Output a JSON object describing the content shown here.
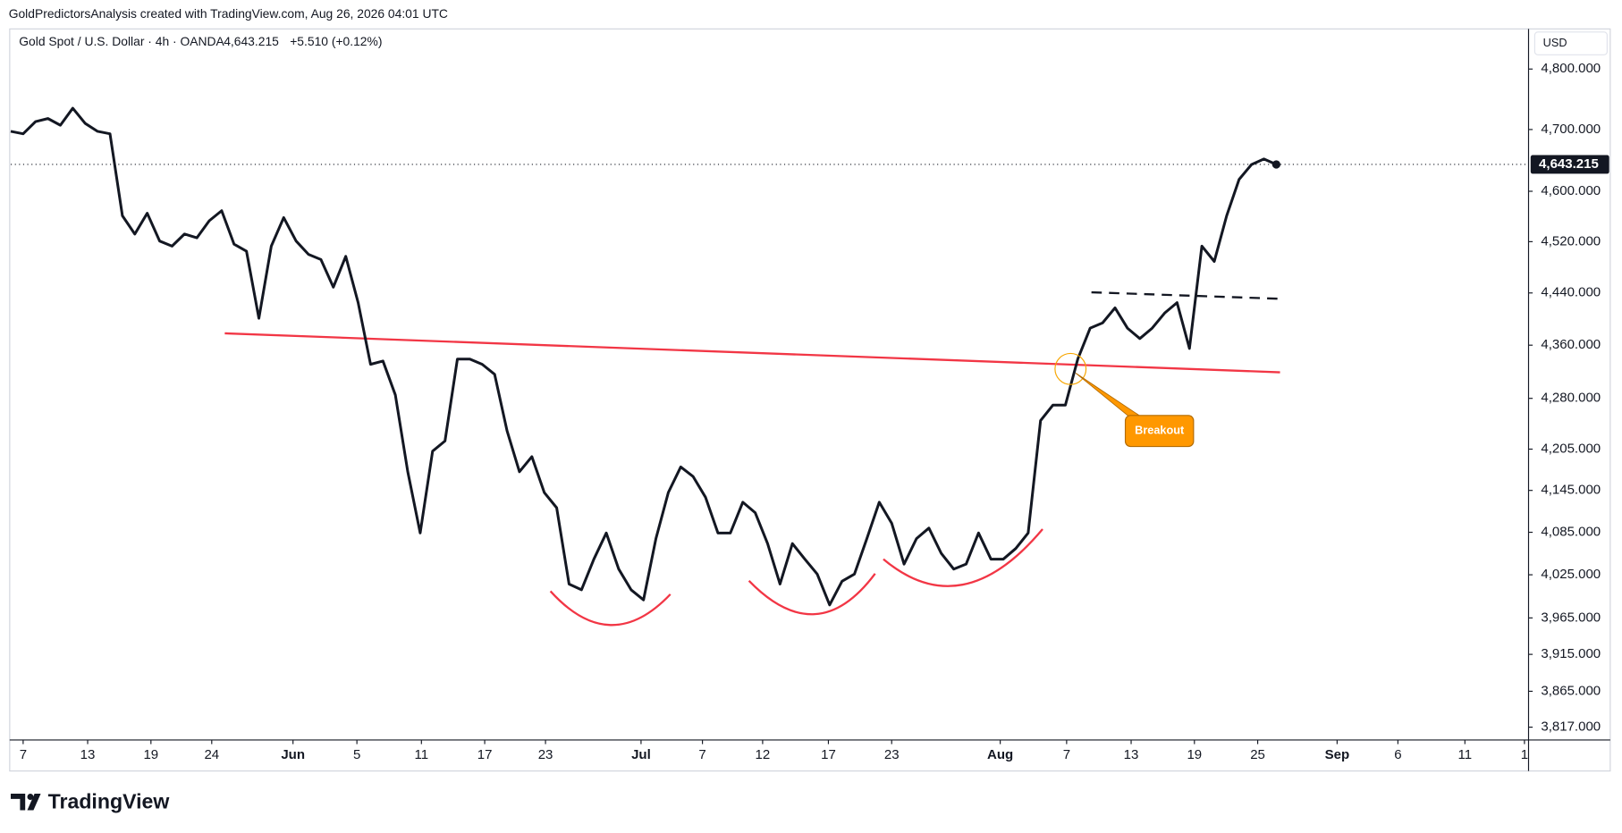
{
  "header": {
    "attribution": "GoldPredictorsAnalysis created with TradingView.com, Aug 26, 2026 04:01 UTC",
    "symbol": "Gold Spot / U.S. Dollar · 4h · OANDA",
    "last": "4,643.215",
    "change": "+5.510 (+0.12%)",
    "currency": "USD"
  },
  "footer": {
    "brand": "TradingView"
  },
  "chart_data": {
    "type": "line",
    "log": true,
    "grid": false,
    "last_price_line": true,
    "series": [
      {
        "name": "Gold Spot / U.S. Dollar",
        "color": "#131722",
        "values": [
          4697,
          4693,
          4713,
          4718,
          4707,
          4735,
          4710,
          4697,
          4693,
          4561,
          4532,
          4565,
          4521,
          4513,
          4532,
          4526,
          4553,
          4569,
          4516,
          4505,
          4401,
          4513,
          4558,
          4521,
          4500,
          4492,
          4449,
          4497,
          4425,
          4331,
          4336,
          4285,
          4172,
          4084,
          4202,
          4217,
          4339,
          4339,
          4331,
          4316,
          4232,
          4172,
          4194,
          4142,
          4120,
          4012,
          4004,
          4047,
          4084,
          4033,
          4004,
          3990,
          4076,
          4142,
          4179,
          4165,
          4135,
          4084,
          4084,
          4128,
          4113,
          4069,
          4012,
          4069,
          4047,
          4026,
          3983,
          4016,
          4026,
          4076,
          4128,
          4098,
          4040,
          4076,
          4091,
          4055,
          4033,
          4040,
          4084,
          4047,
          4047,
          4062,
          4084,
          4247,
          4270,
          4270,
          4339,
          4386,
          4394,
          4417,
          4386,
          4370,
          4386,
          4409,
          4425,
          4355,
          4513,
          4489,
          4561,
          4619,
          4643,
          4652,
          4643.215
        ]
      }
    ],
    "xlim": [
      0,
      122.33
    ],
    "xticks": [
      {
        "value": 1,
        "label": "7"
      },
      {
        "value": 6.2,
        "label": "13"
      },
      {
        "value": 11.3,
        "label": "19"
      },
      {
        "value": 16.2,
        "label": "24"
      },
      {
        "value": 22.75,
        "label": "Jun"
      },
      {
        "value": 27.9,
        "label": "5"
      },
      {
        "value": 33.1,
        "label": "11"
      },
      {
        "value": 38.2,
        "label": "17"
      },
      {
        "value": 43.1,
        "label": "23"
      },
      {
        "value": 50.8,
        "label": "Jul"
      },
      {
        "value": 55.75,
        "label": "7"
      },
      {
        "value": 60.6,
        "label": "12"
      },
      {
        "value": 65.9,
        "label": "17"
      },
      {
        "value": 71,
        "label": "23"
      },
      {
        "value": 79.75,
        "label": "Aug"
      },
      {
        "value": 85.1,
        "label": "7"
      },
      {
        "value": 90.3,
        "label": "13"
      },
      {
        "value": 95.4,
        "label": "19"
      },
      {
        "value": 100.5,
        "label": "25"
      },
      {
        "value": 106.9,
        "label": "Sep"
      },
      {
        "value": 111.8,
        "label": "6"
      },
      {
        "value": 117.2,
        "label": "11"
      },
      {
        "value": 122,
        "label": "1"
      }
    ],
    "ylim": [
      3800,
      4864
    ],
    "yticks": [
      {
        "value": 4800,
        "label": "4,800.000"
      },
      {
        "value": 4700,
        "label": "4,700.000"
      },
      {
        "value": 4600,
        "label": "4,600.000"
      },
      {
        "value": 4520,
        "label": "4,520.000"
      },
      {
        "value": 4440,
        "label": "4,440.000"
      },
      {
        "value": 4360,
        "label": "4,360.000"
      },
      {
        "value": 4280,
        "label": "4,280.000"
      },
      {
        "value": 4205,
        "label": "4,205.000"
      },
      {
        "value": 4145,
        "label": "4,145.000"
      },
      {
        "value": 4085,
        "label": "4,085.000"
      },
      {
        "value": 4025,
        "label": "4,025.000"
      },
      {
        "value": 3965,
        "label": "3,965.000"
      },
      {
        "value": 3915,
        "label": "3,915.000"
      },
      {
        "value": 3865,
        "label": "3,865.000"
      },
      {
        "value": 3817,
        "label": "3,817.000"
      }
    ],
    "trendlines": [
      {
        "x": [
          17.25,
          102.3
        ],
        "values": [
          4378,
          4319
        ],
        "color": "#f23645",
        "dash": false
      },
      {
        "x": [
          87.1,
          102.3
        ],
        "values": [
          4441,
          4431
        ],
        "color": "#131722",
        "dash": true
      }
    ],
    "annotation": "Breakout"
  }
}
